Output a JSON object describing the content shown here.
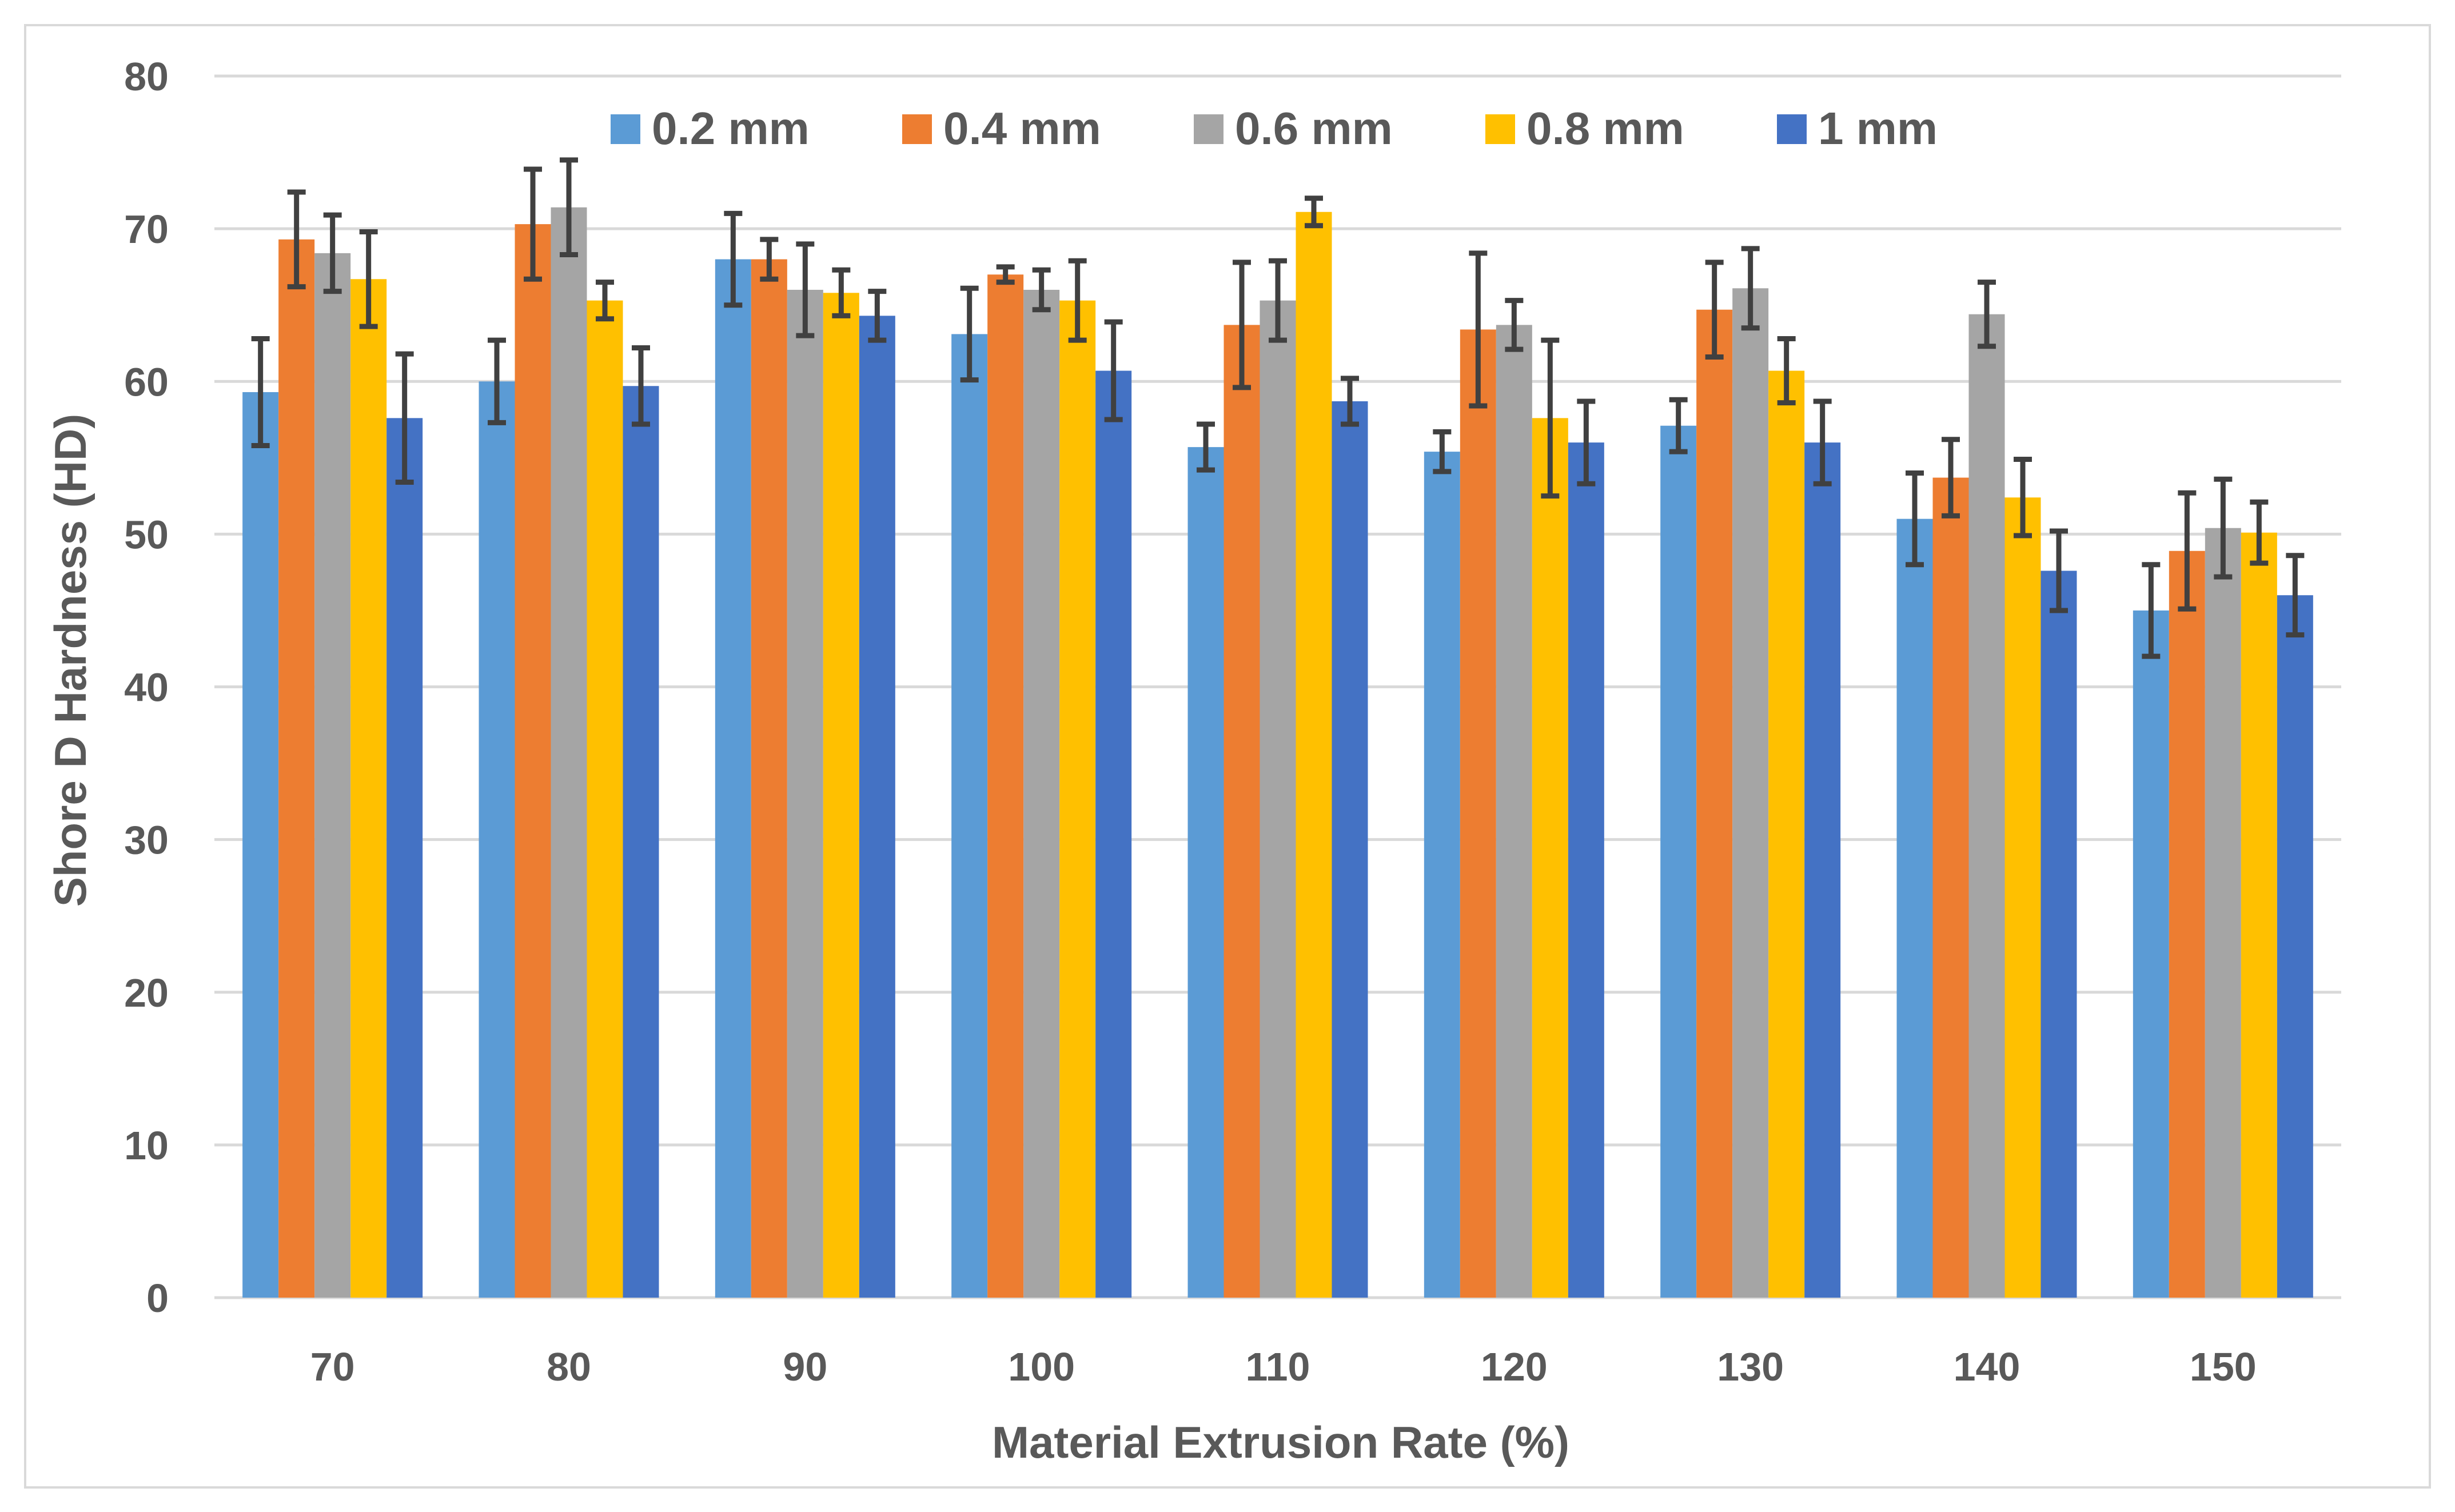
{
  "chart_data": {
    "type": "bar",
    "title": "",
    "xlabel": "Material Extrusion Rate (%)",
    "ylabel": "Shore D Hardness (HD)",
    "ylim": [
      0,
      80
    ],
    "yticks": [
      "0",
      "10",
      "20",
      "30",
      "40",
      "50",
      "60",
      "70",
      "80"
    ],
    "grid": true,
    "legend_position": "top",
    "categories": [
      "70",
      "80",
      "90",
      "100",
      "110",
      "120",
      "130",
      "140",
      "150"
    ],
    "series": [
      {
        "name": "0.2 mm",
        "color": "#5b9bd5",
        "values": [
          59.3,
          60.0,
          68.0,
          63.1,
          55.7,
          55.4,
          57.1,
          51.0,
          45.0
        ],
        "errors": [
          3.5,
          2.7,
          3.0,
          3.0,
          1.5,
          1.3,
          1.7,
          3.0,
          3.0
        ]
      },
      {
        "name": "0.4 mm",
        "color": "#ed7d31",
        "values": [
          69.3,
          70.3,
          68.0,
          67.0,
          63.7,
          63.4,
          64.7,
          53.7,
          48.9
        ],
        "errors": [
          3.1,
          3.6,
          1.3,
          0.5,
          4.1,
          5.0,
          3.1,
          2.5,
          3.8
        ]
      },
      {
        "name": "0.6 mm",
        "color": "#a5a5a5",
        "values": [
          68.4,
          71.4,
          66.0,
          66.0,
          65.3,
          63.7,
          66.1,
          64.4,
          50.4
        ],
        "errors": [
          2.5,
          3.1,
          3.0,
          1.3,
          2.6,
          1.6,
          2.6,
          2.1,
          3.2
        ]
      },
      {
        "name": "0.8 mm",
        "color": "#ffc000",
        "values": [
          66.7,
          65.3,
          65.8,
          65.3,
          71.1,
          57.6,
          60.7,
          52.4,
          50.1
        ],
        "errors": [
          3.1,
          1.2,
          1.5,
          2.6,
          0.9,
          5.1,
          2.1,
          2.5,
          2.0
        ]
      },
      {
        "name": "1 mm",
        "color": "#4472c4",
        "values": [
          57.6,
          59.7,
          64.3,
          60.7,
          58.7,
          56.0,
          56.0,
          47.6,
          46.0
        ],
        "errors": [
          4.2,
          2.5,
          1.6,
          3.2,
          1.5,
          2.7,
          2.7,
          2.6,
          2.6
        ]
      }
    ]
  }
}
